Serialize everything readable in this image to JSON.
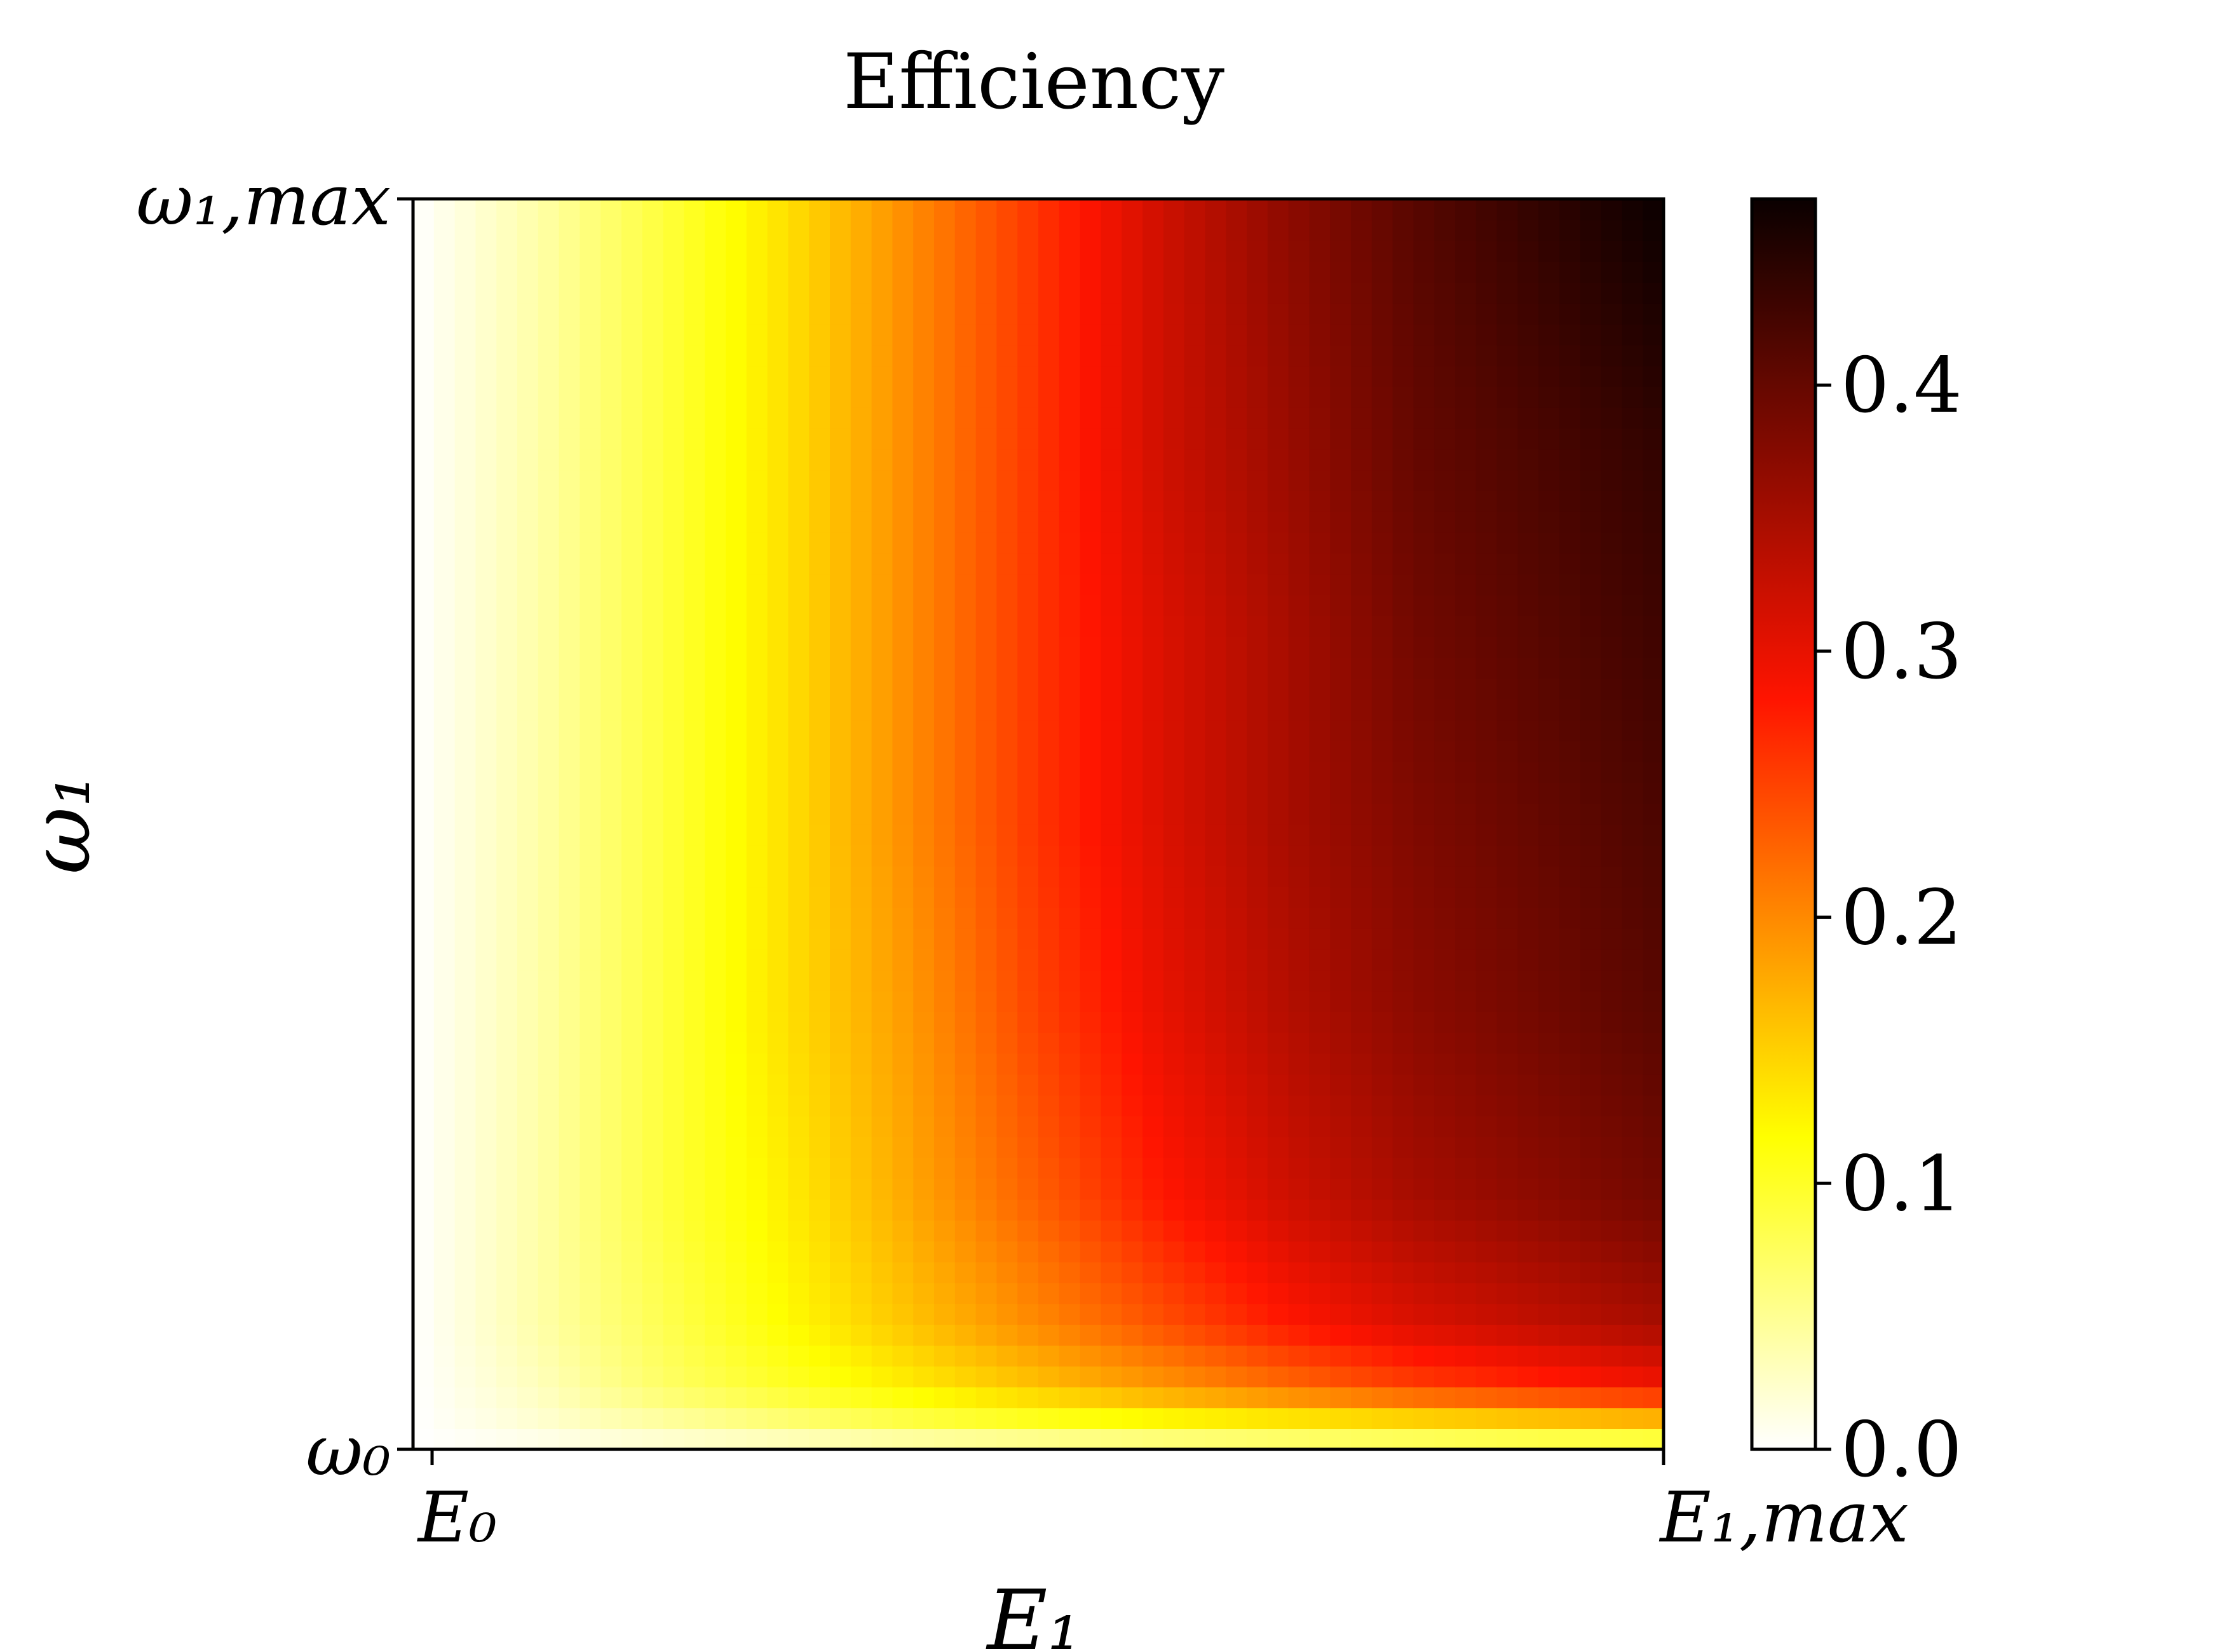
{
  "chart_data": {
    "type": "heatmap",
    "title": "Efficiency",
    "xlabel": "E₁",
    "ylabel": "ω₁",
    "x_ticks": [
      "E₀",
      "E₁,max"
    ],
    "y_ticks": [
      "ω₀",
      "ω₁,max"
    ],
    "colormap": "hot_r",
    "colorbar": {
      "ticks": [
        0.0,
        0.1,
        0.2,
        0.3,
        0.4
      ],
      "tick_labels": [
        "0.0",
        "0.1",
        "0.2",
        "0.3",
        "0.4"
      ],
      "range": [
        0.0,
        0.47
      ]
    },
    "grid": false,
    "x_fraction": [
      0.0,
      0.1,
      0.2,
      0.3,
      0.4,
      0.5,
      0.6,
      0.7,
      0.8,
      0.9,
      1.0
    ],
    "y_fraction": [
      0.0,
      0.02,
      0.05,
      0.1,
      0.2,
      0.35,
      0.5,
      0.65,
      0.8,
      1.0
    ],
    "values": [
      [
        0.0,
        0.005,
        0.01,
        0.015,
        0.02,
        0.025,
        0.03,
        0.035,
        0.04,
        0.045,
        0.05
      ],
      [
        0.0,
        0.02,
        0.04,
        0.06,
        0.08,
        0.095,
        0.11,
        0.12,
        0.13,
        0.14,
        0.15
      ],
      [
        0.0,
        0.03,
        0.07,
        0.1,
        0.13,
        0.16,
        0.19,
        0.22,
        0.25,
        0.27,
        0.29
      ],
      [
        0.0,
        0.04,
        0.08,
        0.12,
        0.16,
        0.2,
        0.24,
        0.28,
        0.31,
        0.33,
        0.35
      ],
      [
        0.0,
        0.04,
        0.09,
        0.13,
        0.18,
        0.23,
        0.28,
        0.32,
        0.35,
        0.37,
        0.39
      ],
      [
        0.0,
        0.04,
        0.09,
        0.14,
        0.19,
        0.25,
        0.3,
        0.34,
        0.37,
        0.39,
        0.41
      ],
      [
        0.0,
        0.04,
        0.09,
        0.14,
        0.2,
        0.26,
        0.31,
        0.35,
        0.38,
        0.4,
        0.42
      ],
      [
        0.0,
        0.04,
        0.09,
        0.14,
        0.2,
        0.26,
        0.31,
        0.35,
        0.39,
        0.41,
        0.43
      ],
      [
        0.0,
        0.04,
        0.09,
        0.14,
        0.2,
        0.26,
        0.32,
        0.36,
        0.4,
        0.42,
        0.44
      ],
      [
        0.0,
        0.04,
        0.09,
        0.14,
        0.2,
        0.26,
        0.32,
        0.37,
        0.41,
        0.44,
        0.47
      ]
    ]
  }
}
